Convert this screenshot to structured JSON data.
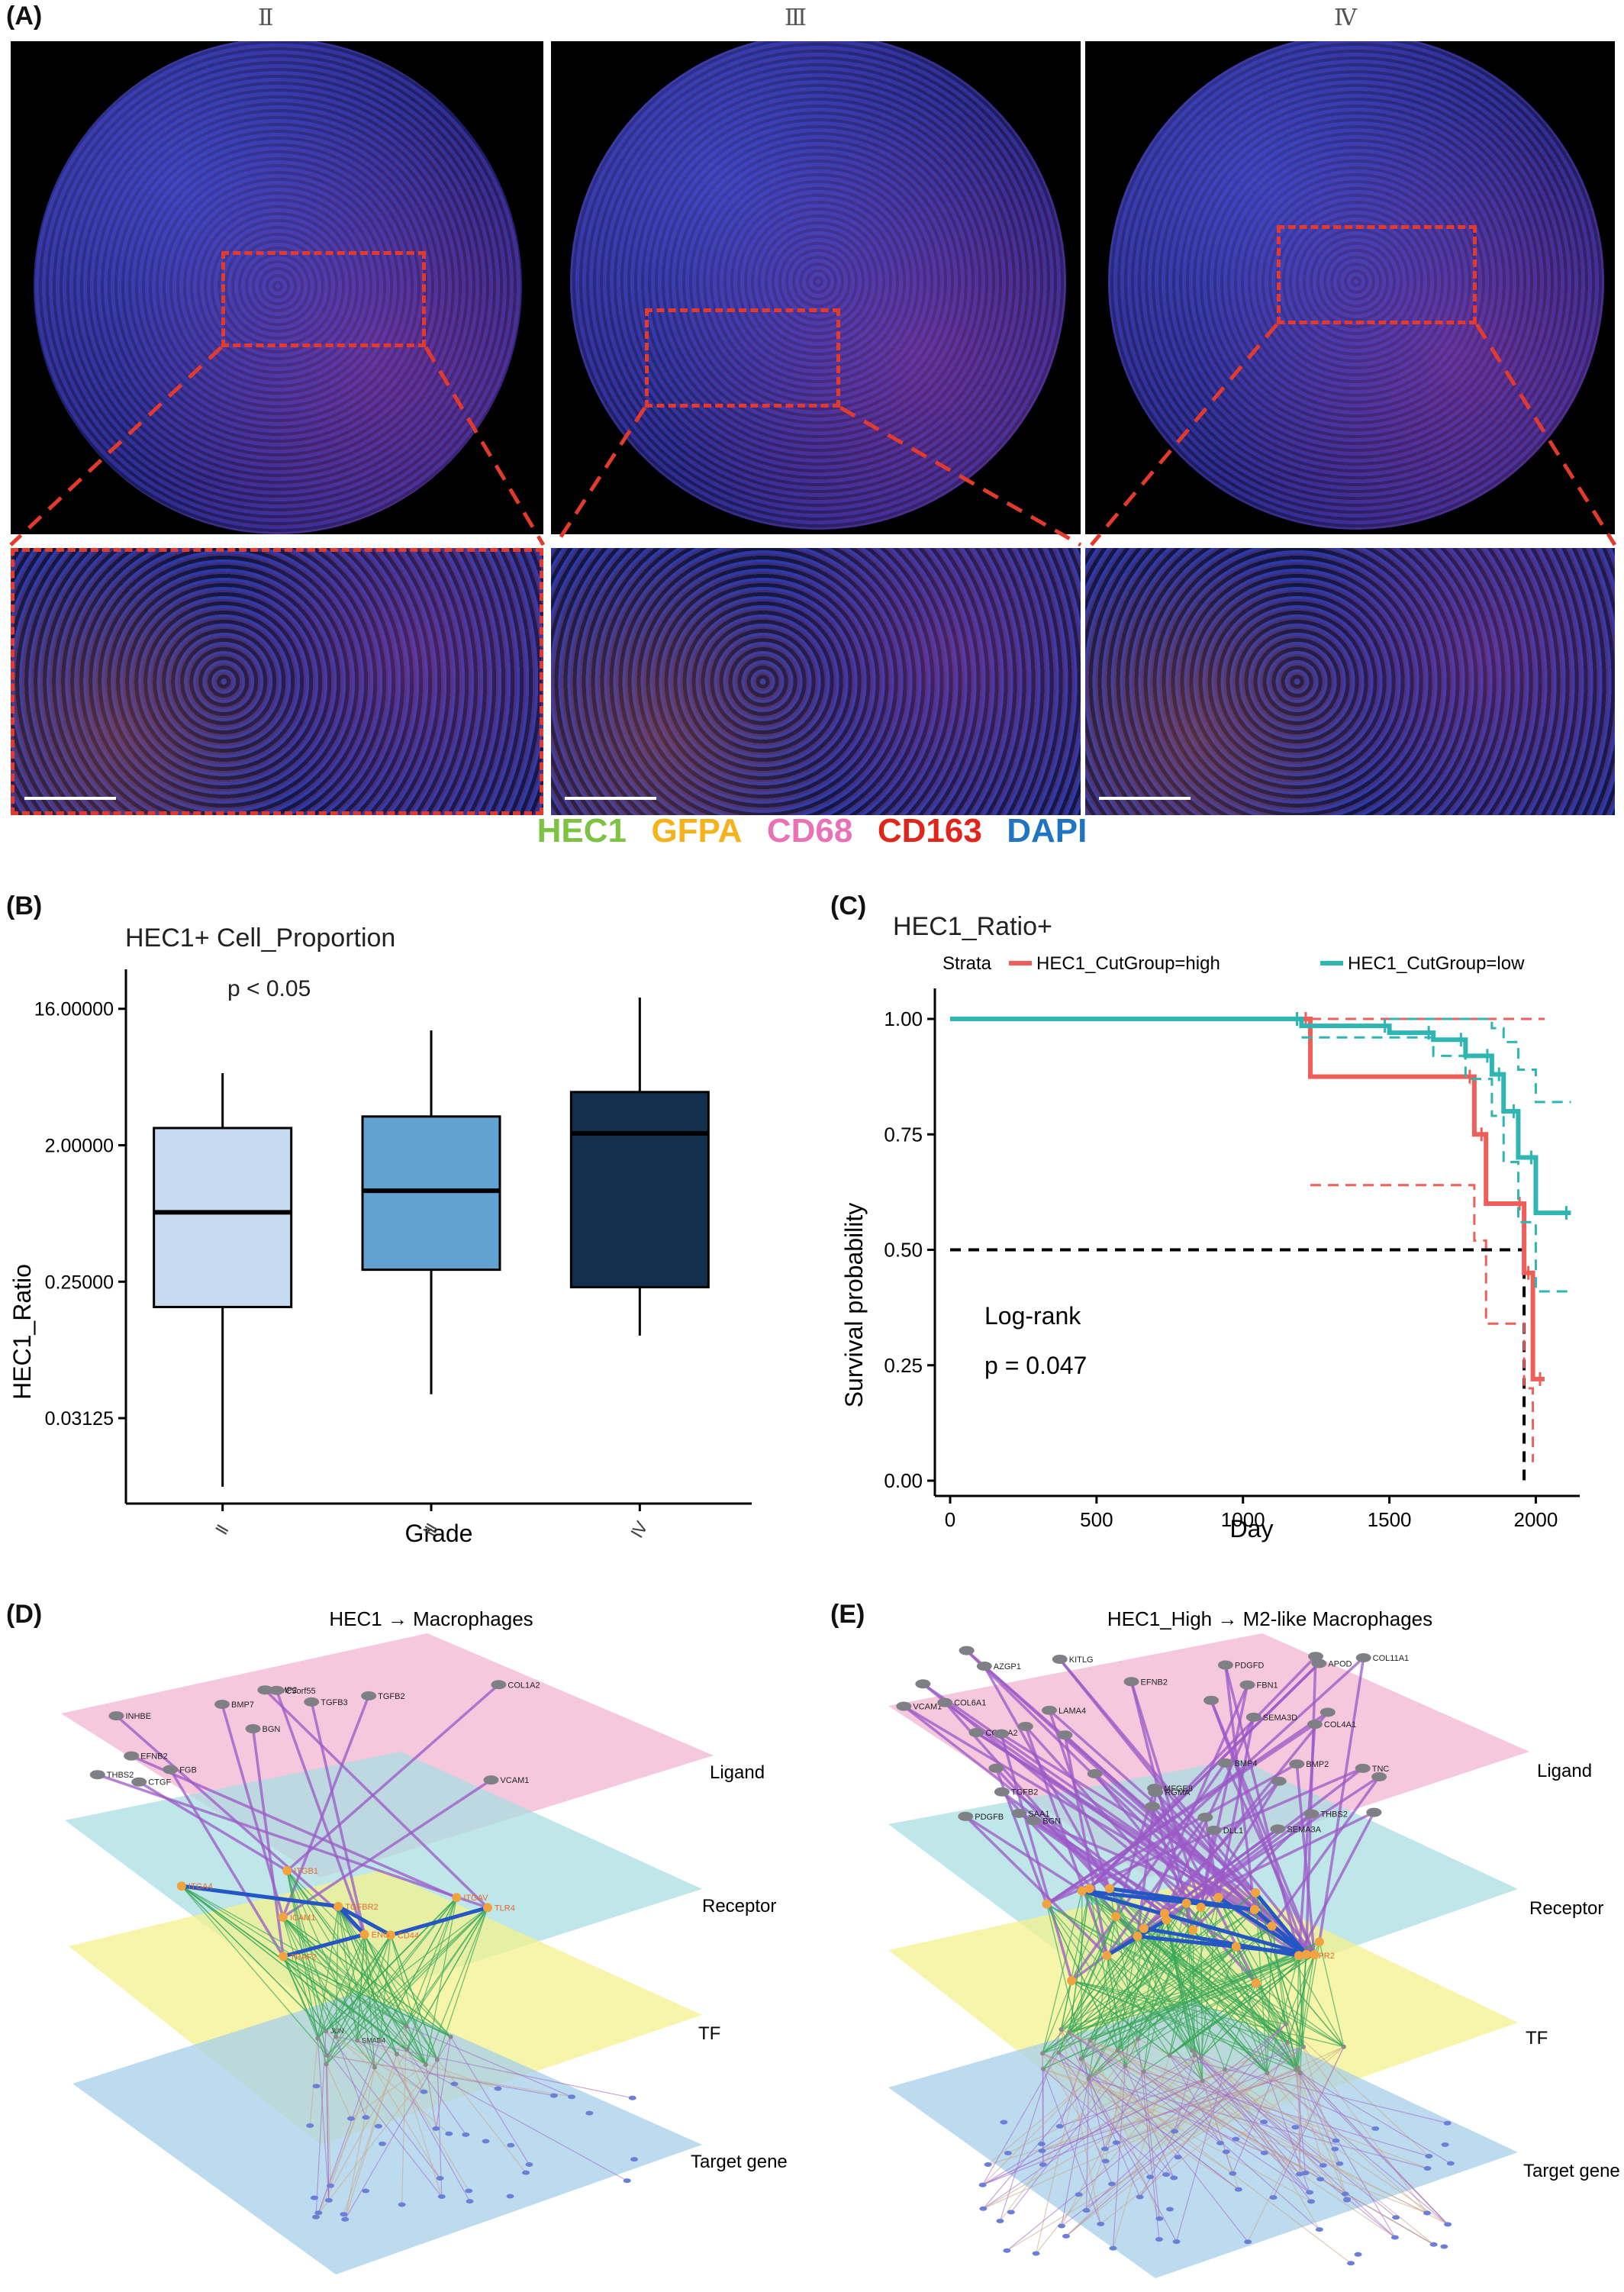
{
  "panelA": {
    "label": "(A)",
    "grades": [
      "Ⅱ",
      "Ⅲ",
      "Ⅳ"
    ],
    "legend": [
      {
        "name": "HEC1",
        "color": "#7dc242"
      },
      {
        "name": "GFPA",
        "color": "#f6b21b"
      },
      {
        "name": "CD68",
        "color": "#e872b5"
      },
      {
        "name": "CD163",
        "color": "#e0261b"
      },
      {
        "name": "DAPI",
        "color": "#1f74c4"
      }
    ],
    "accent": "#e23b2e"
  },
  "panelB": {
    "label": "(B)",
    "title": "HEC1+ Cell_Proportion",
    "annotation": "p < 0.05",
    "chart_data": {
      "type": "box",
      "title": "HEC1+ Cell_Proportion",
      "xlabel": "Grade",
      "ylabel": "HEC1_Ratio",
      "yscale": "log2",
      "yticks": [
        "0.03125",
        "0.25000",
        "2.00000",
        "16.00000"
      ],
      "ytick_values": [
        0.03125,
        0.25,
        2,
        16
      ],
      "categories": [
        "Ⅱ",
        "Ⅲ",
        "Ⅳ"
      ],
      "boxes": [
        {
          "whisker_low": 0.011,
          "q1": 0.17,
          "median": 0.72,
          "q3": 2.6,
          "whisker_high": 6.0,
          "color": "#c6dbef"
        },
        {
          "whisker_low": 0.045,
          "q1": 0.3,
          "median": 1.0,
          "q3": 3.1,
          "whisker_high": 11.5,
          "color": "#62a2d1"
        },
        {
          "whisker_low": 0.11,
          "q1": 0.23,
          "median": 2.4,
          "q3": 4.5,
          "whisker_high": 19.0,
          "color": "#12304d"
        }
      ]
    }
  },
  "panelC": {
    "label": "(C)",
    "title": "HEC1_Ratio+",
    "legend_title": "Strata",
    "annotation_line1": "Log-rank",
    "annotation_line2": "p = 0.047",
    "chart_data": {
      "type": "line",
      "title": "HEC1_Ratio+",
      "xlabel": "Day",
      "ylabel": "Survival probability",
      "xlim": [
        0,
        2150
      ],
      "ylim": [
        0,
        1
      ],
      "xticks": [
        0,
        500,
        1000,
        1500,
        2000
      ],
      "yticks": [
        "0.00",
        "0.25",
        "0.50",
        "0.75",
        "1.00"
      ],
      "ytick_values": [
        0,
        0.25,
        0.5,
        0.75,
        1.0
      ],
      "series": [
        {
          "name": "HEC1_CutGroup=high",
          "color": "#ee5f59",
          "x": [
            0,
            1230,
            1230,
            1790,
            1790,
            1830,
            1830,
            1960,
            1960,
            1990,
            1990,
            2030
          ],
          "y": [
            1.0,
            1.0,
            0.875,
            0.875,
            0.75,
            0.75,
            0.6,
            0.6,
            0.45,
            0.45,
            0.22,
            0.22
          ],
          "lower": [
            [
              1230,
              0.64
            ],
            [
              1790,
              0.52
            ],
            [
              1830,
              0.34
            ],
            [
              1960,
              0.2
            ],
            [
              1990,
              0.04
            ]
          ],
          "upper": [
            [
              1230,
              1.0
            ],
            [
              2030,
              1.0
            ]
          ]
        },
        {
          "name": "HEC1_CutGroup=low",
          "color": "#2fb6b2",
          "x": [
            0,
            1200,
            1200,
            1500,
            1500,
            1650,
            1650,
            1760,
            1760,
            1850,
            1850,
            1890,
            1890,
            1940,
            1940,
            2000,
            2000,
            2120
          ],
          "y": [
            1.0,
            1.0,
            0.985,
            0.985,
            0.97,
            0.97,
            0.955,
            0.955,
            0.92,
            0.92,
            0.88,
            0.88,
            0.8,
            0.8,
            0.7,
            0.7,
            0.58,
            0.58
          ],
          "lower": [
            [
              1200,
              0.96
            ],
            [
              1650,
              0.92
            ],
            [
              1760,
              0.87
            ],
            [
              1850,
              0.79
            ],
            [
              1890,
              0.69
            ],
            [
              1940,
              0.56
            ],
            [
              2000,
              0.41
            ],
            [
              2120,
              0.41
            ]
          ],
          "upper": [
            [
              1500,
              1.0
            ],
            [
              1850,
              0.98
            ],
            [
              1890,
              0.95
            ],
            [
              1940,
              0.89
            ],
            [
              2000,
              0.82
            ],
            [
              2120,
              0.82
            ]
          ]
        }
      ],
      "median_line": {
        "y": 0.5,
        "x": 1960
      }
    }
  },
  "panelD": {
    "label": "(D)",
    "title": "HEC1 → Macrophages",
    "layers": [
      "Ligand",
      "Receptor",
      "TF",
      "Target gene"
    ],
    "ligands": [
      "VCAM1",
      "INHBE",
      "COL1A2",
      "BGN",
      "TGFB2",
      "CTGF",
      "BMP2",
      "TGFB3",
      "EFNB2",
      "BMP7",
      "THBS2",
      "FGB",
      "C5orf55"
    ],
    "receptors": [
      "TGFBR2",
      "CD44",
      "ITGA4",
      "ITGB1",
      "TLR4",
      "ENG",
      "ITGAV",
      "ICAM1",
      "TRAF2"
    ],
    "tfs": [
      "SMAD4",
      "JUN"
    ]
  },
  "panelE": {
    "label": "(E)",
    "title": "HEC1_High → M2-like Macrophages",
    "layers": [
      "Ligand",
      "Receptor",
      "TF",
      "Target gene"
    ],
    "ligands": [
      "TNC",
      "SEMA3A",
      "RGMA",
      "PDGFB",
      "MFGE8",
      "LAMA4",
      "KITLG",
      "FBN1",
      "DLL1",
      "COL4A1",
      "BMP4",
      "APOD",
      "VCAM1",
      "SEMA3D",
      "BGN",
      "AZGP1",
      "TGFB2",
      "SAA1",
      "PDGFD",
      "EFNB2",
      "COL6A1",
      "BMP2",
      "THBS2",
      "COL1A2",
      "COL11A1"
    ],
    "receptors": [
      "BMPR2"
    ]
  }
}
